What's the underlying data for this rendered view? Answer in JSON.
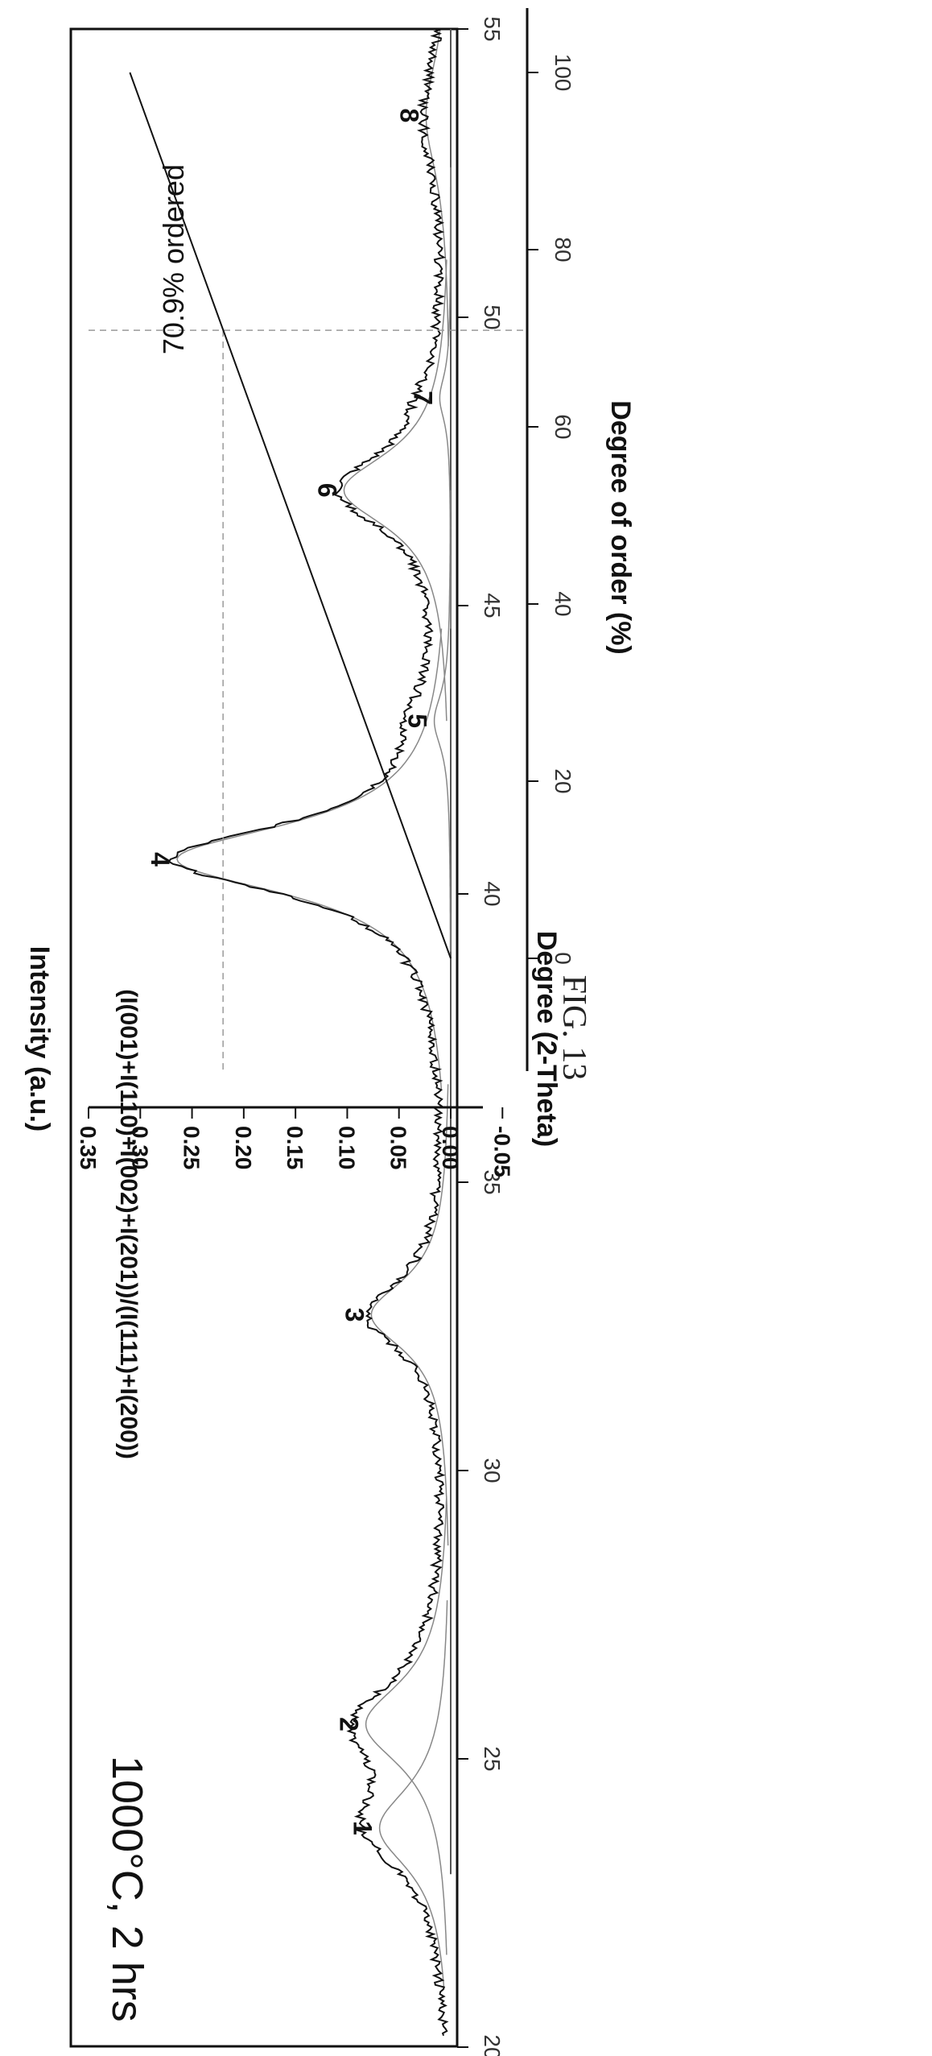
{
  "figure_label": "FIG. 13",
  "chart_data": [
    {
      "type": "line",
      "annotation": "1000°C, 2 hrs",
      "xlabel": "Degree (2-Theta)",
      "ylabel": "Intensity (a.u.)",
      "xlim": [
        20,
        55
      ],
      "xticks": [
        "20",
        "25",
        "30",
        "35",
        "40",
        "45",
        "50",
        "55"
      ],
      "grid": false,
      "peaks": [
        {
          "label": "1",
          "x": 23.8,
          "intensity": 0.26
        },
        {
          "label": "2",
          "x": 25.6,
          "intensity": 0.31
        },
        {
          "label": "3",
          "x": 32.7,
          "intensity": 0.29
        },
        {
          "label": "4",
          "x": 40.6,
          "intensity": 1.0
        },
        {
          "label": "5",
          "x": 43.0,
          "intensity": 0.06
        },
        {
          "label": "6",
          "x": 47.0,
          "intensity": 0.39
        },
        {
          "label": "7",
          "x": 48.6,
          "intensity": 0.04
        },
        {
          "label": "8",
          "x": 53.5,
          "intensity": 0.09
        }
      ]
    },
    {
      "type": "line",
      "xlabel": "Degree of order (%)",
      "ylabel": "(I(001)+I(110)+I(002)+I(201))/(I(111)+I(200))",
      "xlim": [
        -15,
        115
      ],
      "ylim": [
        -0.05,
        0.35
      ],
      "xticks": [
        "0",
        "20",
        "40",
        "60",
        "80",
        "100"
      ],
      "yticks": [
        "-0.05",
        "0.00",
        "0.05",
        "0.10",
        "0.15",
        "0.20",
        "0.25",
        "0.30",
        "0.35"
      ],
      "grid": false,
      "series": [
        {
          "x": [
            0,
            100
          ],
          "y": [
            0.0,
            0.31
          ]
        }
      ],
      "marker": {
        "x": 70.9,
        "y": 0.22,
        "label": "70.9% ordered"
      }
    }
  ]
}
